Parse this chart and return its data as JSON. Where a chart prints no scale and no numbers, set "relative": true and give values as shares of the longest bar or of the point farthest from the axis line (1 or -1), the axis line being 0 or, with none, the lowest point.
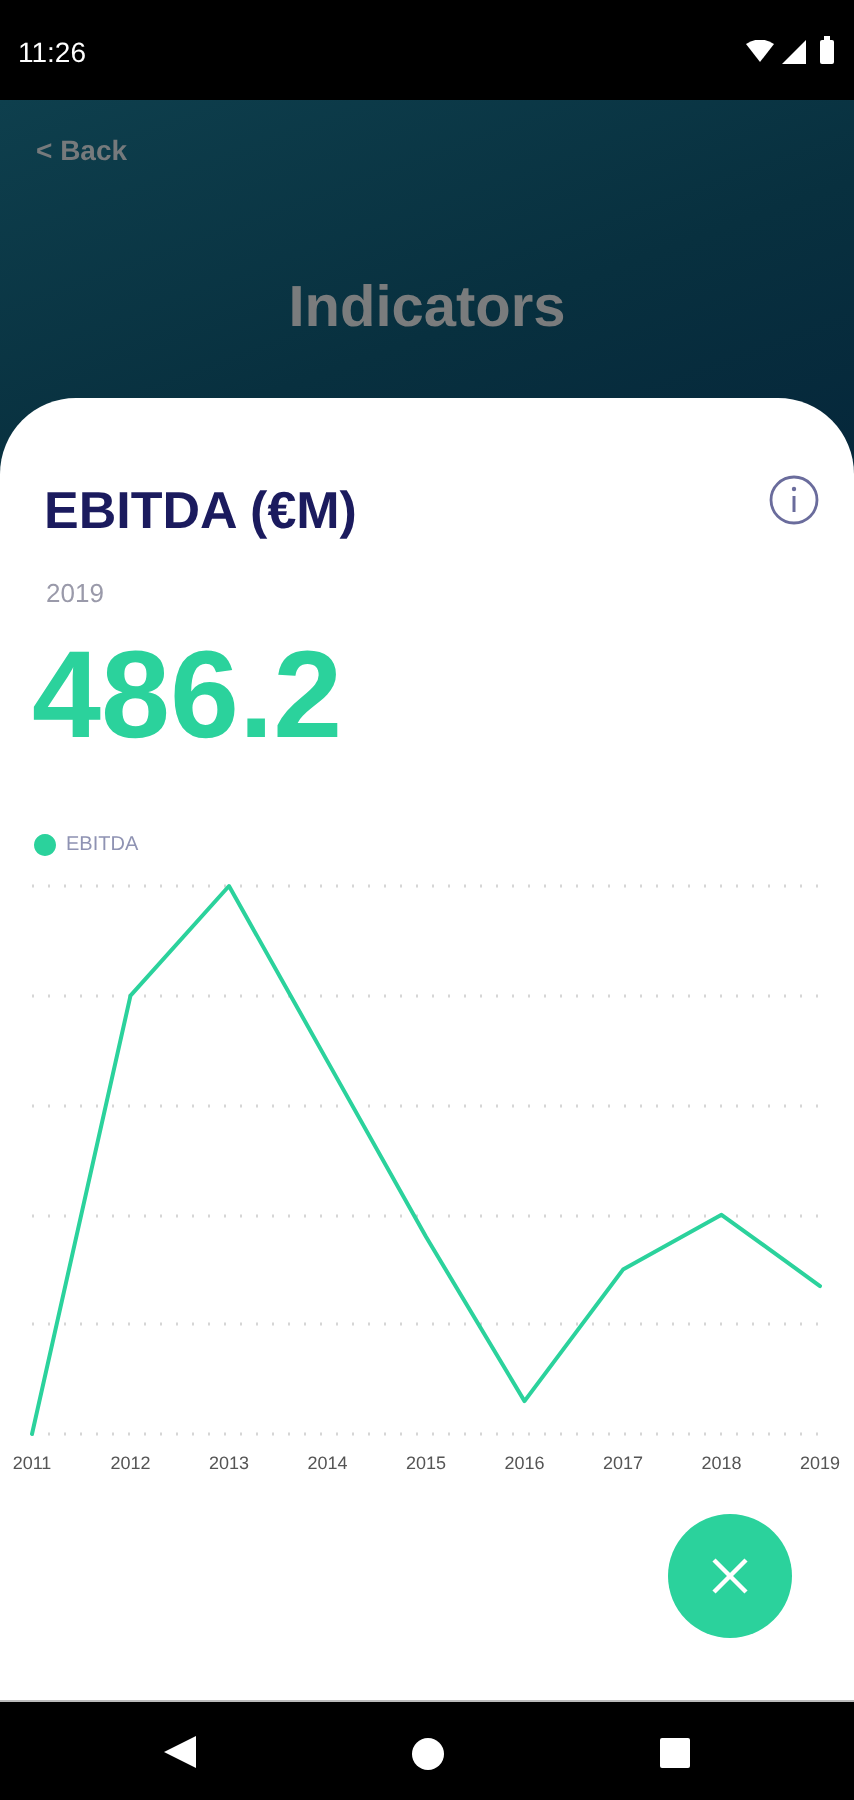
{
  "chart_data": {
    "type": "line",
    "title": "EBITDA (€M)",
    "subtitle": "2019",
    "annotations": [
      "11:26",
      "< Back",
      "Indicators",
      "486.2"
    ],
    "categories": [
      "2011",
      "2012",
      "2013",
      "2014",
      "2015",
      "2016",
      "2017",
      "2018",
      "2019"
    ],
    "series": [
      {
        "name": "EBITDA",
        "color": "#2bd29c",
        "values": [
          0,
          0.8,
          1,
          0.68,
          0.36,
          0.06,
          0.3,
          0.4,
          0.27
        ]
      }
    ],
    "relative": true,
    "grid": "y",
    "legend": "top left"
  }
}
